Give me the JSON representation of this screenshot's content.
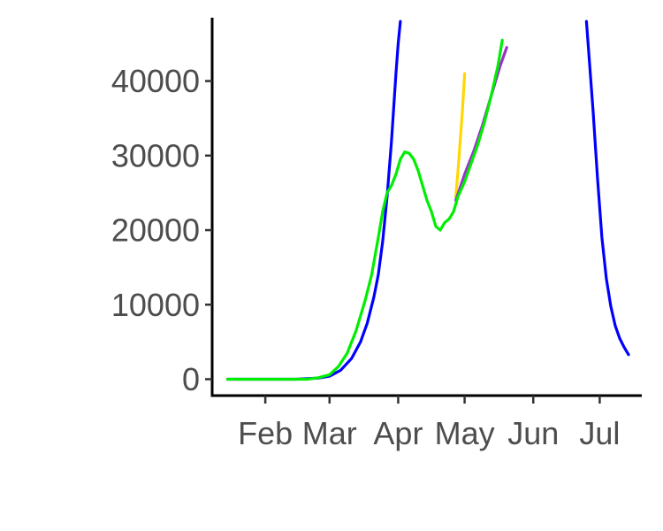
{
  "chart_data": {
    "type": "line",
    "title": "",
    "xlabel": "",
    "ylabel": "",
    "x_axis": {
      "type": "date",
      "tick_labels": [
        "Feb",
        "Mar",
        "Apr",
        "May",
        "Jun",
        "Jul"
      ],
      "tick_dates": [
        "2020-02-01",
        "2020-03-01",
        "2020-04-01",
        "2020-05-01",
        "2020-06-01",
        "2020-07-01"
      ],
      "range": [
        "2020-01-08",
        "2020-07-20"
      ]
    },
    "y_axis": {
      "tick_labels": [
        "0",
        "10000",
        "20000",
        "30000",
        "40000"
      ],
      "ticks": [
        0,
        10000,
        20000,
        30000,
        40000
      ],
      "range": [
        -2200,
        48500
      ]
    },
    "grid": false,
    "legend": "none",
    "series": [
      {
        "color": "#0000ff",
        "segments": [
          [
            [
              "2020-01-15",
              0
            ],
            [
              "2020-02-15",
              0
            ],
            [
              "2020-02-25",
              150
            ],
            [
              "2020-03-01",
              400
            ],
            [
              "2020-03-06",
              1200
            ],
            [
              "2020-03-11",
              2800
            ],
            [
              "2020-03-15",
              5000
            ],
            [
              "2020-03-18",
              7500
            ],
            [
              "2020-03-21",
              11000
            ],
            [
              "2020-03-23",
              14000
            ],
            [
              "2020-03-25",
              18500
            ],
            [
              "2020-03-27",
              24500
            ],
            [
              "2020-03-29",
              32000
            ],
            [
              "2020-03-31",
              41000
            ],
            [
              "2020-04-01",
              45000
            ],
            [
              "2020-04-02",
              48000
            ]
          ],
          [
            [
              "2020-06-25",
              48000
            ],
            [
              "2020-06-26",
              44000
            ],
            [
              "2020-06-28",
              36000
            ],
            [
              "2020-06-30",
              27000
            ],
            [
              "2020-07-02",
              19000
            ],
            [
              "2020-07-04",
              13500
            ],
            [
              "2020-07-06",
              9800
            ],
            [
              "2020-07-08",
              7200
            ],
            [
              "2020-07-10",
              5500
            ],
            [
              "2020-07-12",
              4300
            ],
            [
              "2020-07-14",
              3300
            ]
          ]
        ]
      },
      {
        "color": "#ffd700",
        "segments": [
          [
            [
              "2020-04-27",
              24500
            ],
            [
              "2020-04-28",
              28000
            ],
            [
              "2020-04-29",
              32000
            ],
            [
              "2020-04-30",
              36000
            ],
            [
              "2020-05-01",
              41000
            ]
          ]
        ]
      },
      {
        "color": "#9932cc",
        "segments": [
          [
            [
              "2020-04-27",
              24000
            ],
            [
              "2020-05-01",
              27500
            ],
            [
              "2020-05-05",
              30500
            ],
            [
              "2020-05-09",
              34000
            ],
            [
              "2020-05-13",
              38000
            ],
            [
              "2020-05-17",
              42000
            ],
            [
              "2020-05-20",
              44500
            ]
          ]
        ]
      },
      {
        "color": "#00ee00",
        "segments": [
          [
            [
              "2020-01-15",
              0
            ],
            [
              "2020-02-20",
              0
            ],
            [
              "2020-02-25",
              200
            ],
            [
              "2020-03-01",
              600
            ],
            [
              "2020-03-05",
              1700
            ],
            [
              "2020-03-09",
              3500
            ],
            [
              "2020-03-13",
              6500
            ],
            [
              "2020-03-17",
              10500
            ],
            [
              "2020-03-20",
              14000
            ],
            [
              "2020-03-23",
              19000
            ],
            [
              "2020-03-25",
              22500
            ],
            [
              "2020-03-27",
              25000
            ],
            [
              "2020-03-29",
              26000
            ],
            [
              "2020-03-31",
              27500
            ],
            [
              "2020-04-02",
              29500
            ],
            [
              "2020-04-04",
              30500
            ],
            [
              "2020-04-06",
              30300
            ],
            [
              "2020-04-08",
              29500
            ],
            [
              "2020-04-10",
              28000
            ],
            [
              "2020-04-12",
              26000
            ],
            [
              "2020-04-14",
              24000
            ],
            [
              "2020-04-16",
              22500
            ],
            [
              "2020-04-18",
              20500
            ],
            [
              "2020-04-20",
              20000
            ],
            [
              "2020-04-22",
              21000
            ],
            [
              "2020-04-24",
              21500
            ],
            [
              "2020-04-26",
              22500
            ],
            [
              "2020-04-28",
              24500
            ],
            [
              "2020-05-01",
              26500
            ],
            [
              "2020-05-04",
              29000
            ],
            [
              "2020-05-07",
              31500
            ],
            [
              "2020-05-10",
              34500
            ],
            [
              "2020-05-13",
              38000
            ],
            [
              "2020-05-16",
              42000
            ],
            [
              "2020-05-18",
              45500
            ]
          ]
        ]
      }
    ]
  }
}
